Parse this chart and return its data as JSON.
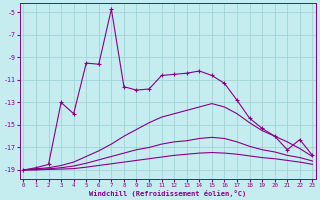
{
  "xlabel": "Windchill (Refroidissement éolien,°C)",
  "background_color": "#c5edef",
  "grid_color": "#a0d4d8",
  "line_color": "#880088",
  "x_ticks": [
    0,
    1,
    2,
    3,
    4,
    5,
    6,
    7,
    8,
    9,
    10,
    11,
    12,
    13,
    14,
    15,
    16,
    17,
    18,
    19,
    20,
    21,
    22,
    23
  ],
  "y_ticks": [
    -5,
    -7,
    -9,
    -11,
    -13,
    -15,
    -17,
    -19
  ],
  "ylim": [
    -19.8,
    -4.2
  ],
  "xlim": [
    -0.3,
    23.3
  ],
  "curves": [
    {
      "x": [
        0,
        1,
        2,
        3,
        4,
        5,
        6,
        7,
        8,
        9,
        10,
        11,
        12,
        13,
        14,
        15,
        16,
        17,
        18,
        19,
        20,
        21,
        22,
        23
      ],
      "y": [
        -19,
        -18.8,
        -18.5,
        -13,
        -14,
        -9.5,
        -9.6,
        -4.7,
        -11.6,
        -11.9,
        -11.8,
        -10.6,
        -10.5,
        -10.4,
        -10.2,
        -10.6,
        -11.3,
        -12.8,
        -14.4,
        -15.3,
        -16.0,
        -17.2,
        -16.3,
        -17.7
      ],
      "marker": true
    },
    {
      "x": [
        0,
        1,
        2,
        3,
        4,
        5,
        6,
        7,
        8,
        9,
        10,
        11,
        12,
        13,
        14,
        15,
        16,
        17,
        18,
        19,
        20,
        21,
        22,
        23
      ],
      "y": [
        -19,
        -18.9,
        -18.8,
        -18.6,
        -18.3,
        -17.8,
        -17.3,
        -16.7,
        -16.0,
        -15.4,
        -14.8,
        -14.3,
        -14.0,
        -13.7,
        -13.4,
        -13.1,
        -13.4,
        -14.0,
        -14.8,
        -15.5,
        -16.0,
        -16.5,
        -17.1,
        -17.8
      ],
      "marker": false
    },
    {
      "x": [
        0,
        1,
        2,
        3,
        4,
        5,
        6,
        7,
        8,
        9,
        10,
        11,
        12,
        13,
        14,
        15,
        16,
        17,
        18,
        19,
        20,
        21,
        22,
        23
      ],
      "y": [
        -19,
        -18.95,
        -18.9,
        -18.8,
        -18.65,
        -18.4,
        -18.1,
        -17.8,
        -17.5,
        -17.2,
        -17.0,
        -16.7,
        -16.5,
        -16.4,
        -16.2,
        -16.1,
        -16.2,
        -16.5,
        -16.9,
        -17.2,
        -17.4,
        -17.7,
        -17.9,
        -18.2
      ],
      "marker": false
    },
    {
      "x": [
        0,
        1,
        2,
        3,
        4,
        5,
        6,
        7,
        8,
        9,
        10,
        11,
        12,
        13,
        14,
        15,
        16,
        17,
        18,
        19,
        20,
        21,
        22,
        23
      ],
      "y": [
        -19,
        -19,
        -18.95,
        -18.92,
        -18.88,
        -18.75,
        -18.6,
        -18.45,
        -18.3,
        -18.15,
        -18.0,
        -17.85,
        -17.7,
        -17.6,
        -17.5,
        -17.45,
        -17.5,
        -17.6,
        -17.75,
        -17.9,
        -18.0,
        -18.15,
        -18.3,
        -18.5
      ],
      "marker": false
    }
  ]
}
